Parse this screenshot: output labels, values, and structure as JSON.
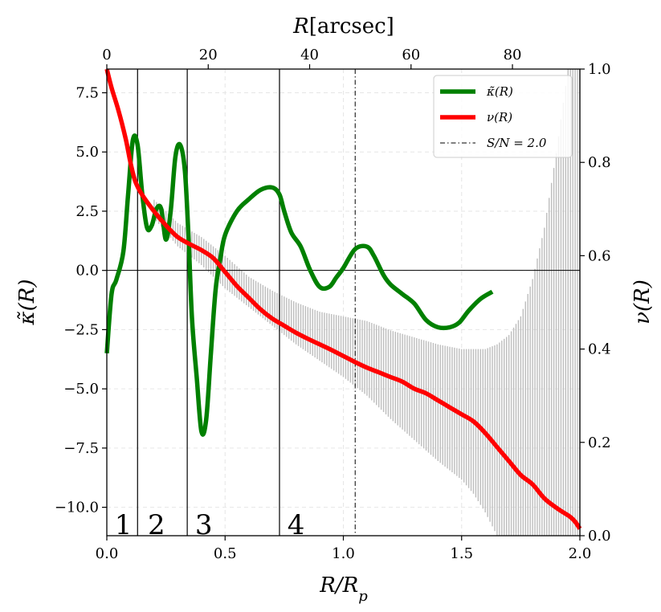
{
  "chart_data": {
    "type": "line",
    "x_bottom_label": "R/R_p",
    "x_top_label": "R[arcsec]",
    "y_left_label": "κ̃(R)",
    "y_right_label": "ν(R)",
    "x_bottom_range": [
      0.0,
      2.0
    ],
    "x_top_range": [
      0,
      93.3
    ],
    "y_left_range": [
      -11.2,
      8.5
    ],
    "y_right_range": [
      0.0,
      1.0
    ],
    "x_bottom_ticks": [
      0.0,
      0.5,
      1.0,
      1.5,
      2.0
    ],
    "x_bottom_tick_labels": [
      "0.0",
      "0.5",
      "1.0",
      "1.5",
      "2.0"
    ],
    "x_top_ticks": [
      0,
      20,
      40,
      60,
      80
    ],
    "x_top_tick_labels": [
      "0",
      "20",
      "40",
      "60",
      "80"
    ],
    "y_left_ticks": [
      7.5,
      5.0,
      2.5,
      0.0,
      -2.5,
      -5.0,
      -7.5,
      -10.0
    ],
    "y_left_tick_labels": [
      "7.5",
      "5.0",
      "2.5",
      "0.0",
      "−2.5",
      "−5.0",
      "−7.5",
      "−10.0"
    ],
    "y_right_ticks": [
      0.0,
      0.2,
      0.4,
      0.6,
      0.8,
      1.0
    ],
    "y_right_tick_labels": [
      "0.0",
      "0.2",
      "0.4",
      "0.6",
      "0.8",
      "1.0"
    ],
    "grid": true,
    "legend_position": "top-right",
    "legend": [
      {
        "label": "κ̃(R)",
        "color": "#008000",
        "style": "solid"
      },
      {
        "label": "ν(R)",
        "color": "#ff0000",
        "style": "solid"
      },
      {
        "label": "S/N = 2.0",
        "color": "#000000",
        "style": "dashdot"
      }
    ],
    "sn_line_x": 1.05,
    "zero_line_y": 0.0,
    "region_boundaries": [
      0.13,
      0.34,
      0.73
    ],
    "region_labels": [
      {
        "text": "1",
        "x": 0.07
      },
      {
        "text": "2",
        "x": 0.21
      },
      {
        "text": "3",
        "x": 0.41
      },
      {
        "text": "4",
        "x": 0.8
      }
    ],
    "series": [
      {
        "name": "κ̃(R)",
        "axis": "left",
        "color": "#008000",
        "x": [
          0.0,
          0.02,
          0.04,
          0.07,
          0.09,
          0.11,
          0.13,
          0.15,
          0.17,
          0.19,
          0.21,
          0.23,
          0.25,
          0.27,
          0.29,
          0.31,
          0.33,
          0.345,
          0.36,
          0.38,
          0.4,
          0.42,
          0.44,
          0.46,
          0.48,
          0.5,
          0.55,
          0.6,
          0.65,
          0.7,
          0.73,
          0.75,
          0.78,
          0.82,
          0.86,
          0.9,
          0.94,
          0.97,
          1.0,
          1.05,
          1.1,
          1.13,
          1.17,
          1.2,
          1.25,
          1.3,
          1.35,
          1.4,
          1.45,
          1.49,
          1.53,
          1.58,
          1.63
        ],
        "y": [
          -3.5,
          -1.0,
          -0.4,
          0.8,
          3.2,
          5.5,
          5.3,
          3.2,
          1.8,
          1.9,
          2.6,
          2.6,
          1.3,
          2.5,
          4.8,
          5.3,
          4.2,
          1.5,
          -2.0,
          -4.5,
          -6.8,
          -6.3,
          -3.5,
          -0.8,
          0.5,
          1.5,
          2.5,
          3.0,
          3.4,
          3.5,
          3.2,
          2.5,
          1.6,
          1.0,
          0.0,
          -0.7,
          -0.7,
          -0.3,
          0.1,
          0.9,
          1.0,
          0.6,
          -0.2,
          -0.6,
          -1.0,
          -1.4,
          -2.1,
          -2.4,
          -2.4,
          -2.2,
          -1.7,
          -1.2,
          -0.9
        ]
      },
      {
        "name": "ν(R)",
        "axis": "right",
        "color": "#ff0000",
        "x": [
          0.0,
          0.02,
          0.05,
          0.08,
          0.1,
          0.12,
          0.15,
          0.2,
          0.25,
          0.3,
          0.35,
          0.4,
          0.45,
          0.5,
          0.55,
          0.6,
          0.65,
          0.7,
          0.75,
          0.8,
          0.85,
          0.9,
          0.95,
          1.0,
          1.05,
          1.1,
          1.15,
          1.2,
          1.25,
          1.3,
          1.35,
          1.4,
          1.45,
          1.5,
          1.55,
          1.6,
          1.65,
          1.7,
          1.75,
          1.8,
          1.85,
          1.9,
          1.93,
          1.96,
          1.98,
          2.0
        ],
        "y": [
          1.0,
          0.96,
          0.91,
          0.85,
          0.8,
          0.76,
          0.73,
          0.695,
          0.665,
          0.64,
          0.625,
          0.612,
          0.595,
          0.565,
          0.535,
          0.51,
          0.485,
          0.465,
          0.45,
          0.435,
          0.422,
          0.41,
          0.398,
          0.385,
          0.372,
          0.36,
          0.35,
          0.34,
          0.33,
          0.315,
          0.305,
          0.29,
          0.275,
          0.26,
          0.245,
          0.22,
          0.19,
          0.16,
          0.13,
          0.11,
          0.08,
          0.06,
          0.05,
          0.04,
          0.03,
          0.015
        ]
      }
    ],
    "error_band": {
      "series": "ν(R)",
      "color": "#bdbdbd",
      "x": [
        0.2,
        0.3,
        0.4,
        0.5,
        0.6,
        0.7,
        0.8,
        0.9,
        1.0,
        1.1,
        1.2,
        1.3,
        1.4,
        1.5,
        1.55,
        1.6,
        1.65,
        1.7,
        1.75,
        1.8,
        1.85,
        1.9,
        1.95,
        2.0
      ],
      "upper": [
        0.72,
        0.67,
        0.64,
        0.6,
        0.555,
        0.525,
        0.5,
        0.48,
        0.47,
        0.46,
        0.44,
        0.425,
        0.41,
        0.4,
        0.4,
        0.4,
        0.41,
        0.43,
        0.47,
        0.55,
        0.66,
        0.82,
        1.0,
        1.0
      ],
      "lower": [
        0.68,
        0.62,
        0.58,
        0.53,
        0.49,
        0.45,
        0.41,
        0.375,
        0.34,
        0.3,
        0.25,
        0.205,
        0.16,
        0.12,
        0.09,
        0.05,
        0.0,
        0.0,
        0.0,
        0.0,
        0.0,
        0.0,
        0.0,
        0.0
      ]
    }
  }
}
